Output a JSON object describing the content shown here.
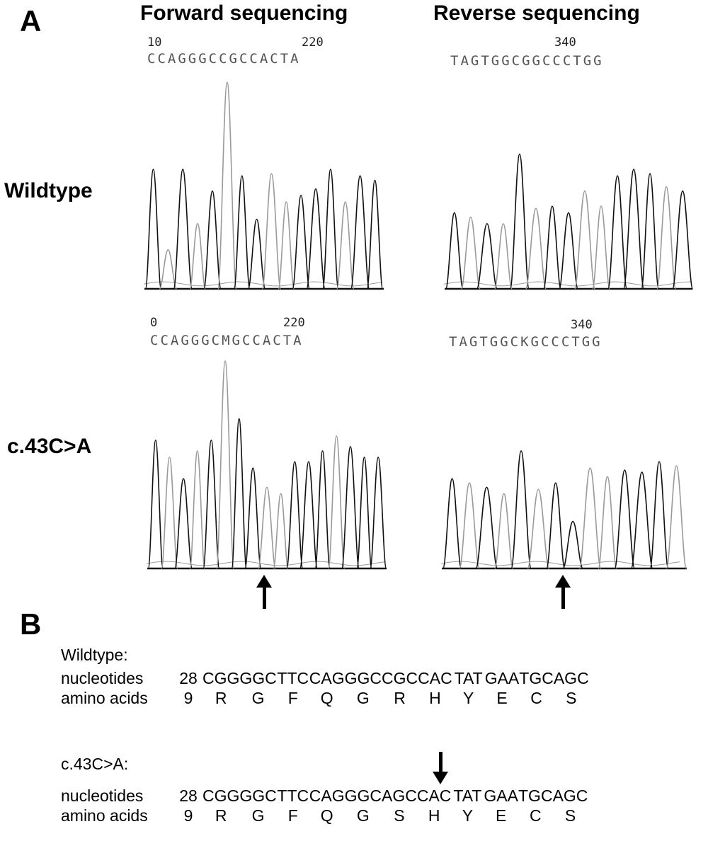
{
  "panel_a": {
    "letter": "A",
    "col_forward": "Forward sequencing",
    "col_reverse": "Reverse sequencing",
    "row_wildtype": "Wildtype",
    "row_mutant": "c.43C>A",
    "wt_forward": {
      "pos_left": "10",
      "pos_mid": "220",
      "sequence": "CCAGGGCCGCCACTA"
    },
    "wt_reverse": {
      "pos_mid": "340",
      "sequence": "TAGTGGCGGCCCTGG"
    },
    "mut_forward": {
      "pos_left": "0",
      "pos_mid": "220",
      "sequence": "CCAGGGCMGCCACTA"
    },
    "mut_reverse": {
      "pos_mid": "340",
      "sequence": "TAGTGGCKGCCCTGG"
    }
  },
  "panel_b": {
    "letter": "B",
    "wildtype": {
      "heading": "Wildtype:",
      "nuc_label": "nucleotides",
      "nuc_start": "28",
      "codons": [
        "CGG",
        "GGC",
        "TTC",
        "CAG",
        "GGC",
        "CGC",
        "CAC",
        "TAT",
        "GAA",
        "TGC",
        "AGC"
      ],
      "aa_label": "amino acids",
      "aa_start": "9",
      "amino_acids": [
        "R",
        "G",
        "F",
        "Q",
        "G",
        "R",
        "H",
        "Y",
        "E",
        "C",
        "S"
      ]
    },
    "mutant": {
      "heading": "c.43C>A:",
      "nuc_label": "nucleotides",
      "nuc_start": "28",
      "codons": [
        "CGG",
        "GGC",
        "TTC",
        "CAG",
        "GGC",
        "AGC",
        "CAC",
        "TAT",
        "GAA",
        "TGC",
        "AGC"
      ],
      "aa_label": "amino acids",
      "aa_start": "9",
      "amino_acids": [
        "R",
        "G",
        "F",
        "Q",
        "G",
        "S",
        "H",
        "Y",
        "E",
        "C",
        "S"
      ]
    }
  },
  "chromatograms": {
    "wt_forward": [
      0.55,
      0.18,
      0.55,
      0.3,
      0.45,
      0.95,
      0.52,
      0.32,
      0.53,
      0.4,
      0.43,
      0.46,
      0.55,
      0.4,
      0.52,
      0.5
    ],
    "wt_reverse": [
      0.35,
      0.33,
      0.3,
      0.3,
      0.62,
      0.37,
      0.38,
      0.35,
      0.45,
      0.38,
      0.52,
      0.55,
      0.53,
      0.47,
      0.45
    ],
    "mut_forward": [
      0.6,
      0.52,
      0.42,
      0.55,
      0.6,
      0.97,
      0.7,
      0.47,
      0.38,
      0.35,
      0.5,
      0.5,
      0.55,
      0.62,
      0.57,
      0.52,
      0.52
    ],
    "mut_reverse": [
      0.42,
      0.4,
      0.38,
      0.35,
      0.55,
      0.37,
      0.4,
      0.22,
      0.47,
      0.43,
      0.46,
      0.45,
      0.5,
      0.48
    ],
    "grey_line_color": "#9a9a9a",
    "black_line_color": "#111111"
  }
}
